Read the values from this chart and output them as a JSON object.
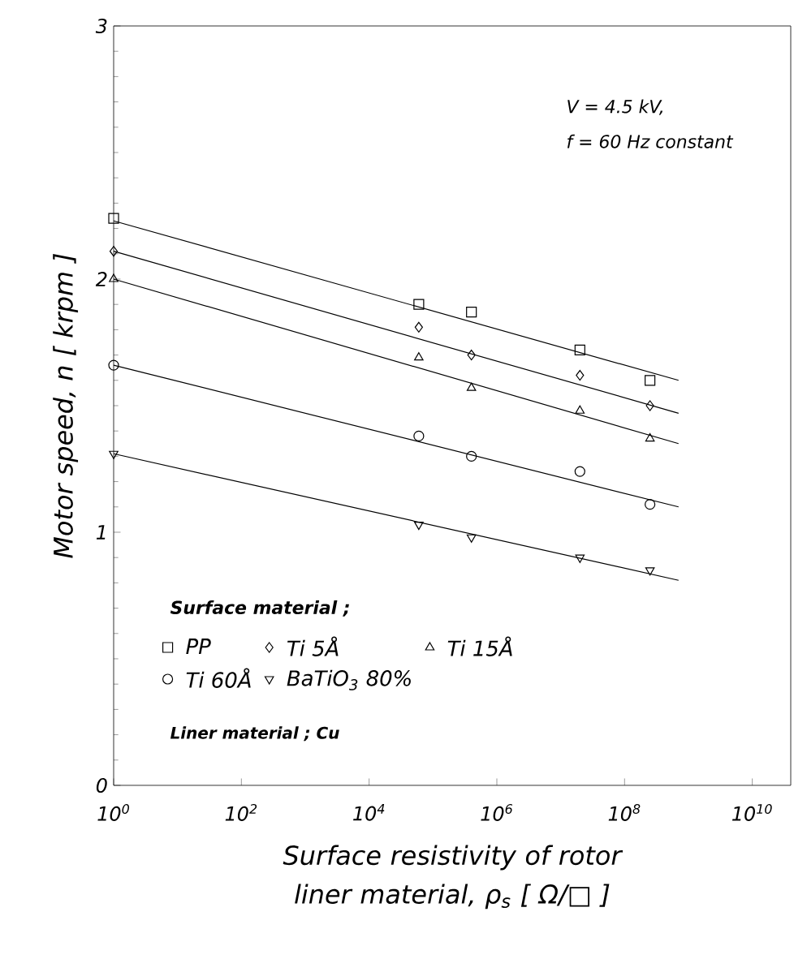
{
  "chart_data": {
    "type": "scatter",
    "log": "x",
    "xlabel": "Surface resistivity of rotor liner material, ρ$_{s}$ [ Ω/□ ]",
    "ylabel": "Motor speed, n [ krpm ]",
    "legend_title": "Surface material ;",
    "legend": "bottom left",
    "annotations": [
      "V = 4.5 kV,",
      "f = 60 Hz constant",
      "Liner material ; Cu"
    ],
    "xlim": [
      1,
      40000000000
    ],
    "ylim": [
      0,
      3
    ],
    "xticks": [
      {
        "value": 1,
        "label": "10$^{0}$"
      },
      {
        "value": 100,
        "label": "10$^{2}$"
      },
      {
        "value": 10000,
        "label": "10$^{4}$"
      },
      {
        "value": 1000000,
        "label": "10$^{6}$"
      },
      {
        "value": 100000000,
        "label": "10$^{8}$"
      },
      {
        "value": 10000000000,
        "label": "10$^{10}$"
      }
    ],
    "yticks": [
      0,
      1,
      2,
      3
    ],
    "series": [
      {
        "name": "PP",
        "color": "#000000",
        "marker": "square",
        "x": [
          1,
          60000,
          400000,
          20000000,
          250000000
        ],
        "values": [
          2.24,
          1.9,
          1.87,
          1.72,
          1.6
        ]
      },
      {
        "name": "Ti 5Å",
        "color": "#000000",
        "marker": "diamond",
        "x": [
          1,
          60000,
          400000,
          20000000,
          250000000
        ],
        "values": [
          2.11,
          1.81,
          1.7,
          1.62,
          1.5
        ]
      },
      {
        "name": "Ti 15Å",
        "color": "#000000",
        "marker": "triangle",
        "x": [
          1,
          60000,
          400000,
          20000000,
          250000000
        ],
        "values": [
          2.0,
          1.69,
          1.57,
          1.48,
          1.37
        ]
      },
      {
        "name": "Ti 60Å",
        "color": "#000000",
        "marker": "circle",
        "x": [
          1,
          60000,
          400000,
          20000000,
          250000000
        ],
        "values": [
          1.66,
          1.38,
          1.3,
          1.24,
          1.11
        ]
      },
      {
        "name": "BaTiO$_{3}$ 80%",
        "color": "#000000",
        "marker": "triangle_down",
        "x": [
          1,
          60000,
          400000,
          20000000,
          250000000
        ],
        "values": [
          1.31,
          1.03,
          0.98,
          0.9,
          0.85
        ]
      },
      {
        "type": "line",
        "color": "#000000",
        "x": [
          1,
          700000000
        ],
        "values": [
          2.23,
          1.6
        ]
      },
      {
        "type": "line",
        "color": "#000000",
        "x": [
          1,
          700000000
        ],
        "values": [
          2.11,
          1.47
        ]
      },
      {
        "type": "line",
        "color": "#000000",
        "x": [
          1,
          700000000
        ],
        "values": [
          2.0,
          1.35
        ]
      },
      {
        "type": "line",
        "color": "#000000",
        "x": [
          1,
          700000000
        ],
        "values": [
          1.66,
          1.1
        ]
      },
      {
        "type": "line",
        "color": "#000000",
        "x": [
          1,
          700000000
        ],
        "values": [
          1.31,
          0.81
        ]
      }
    ]
  }
}
